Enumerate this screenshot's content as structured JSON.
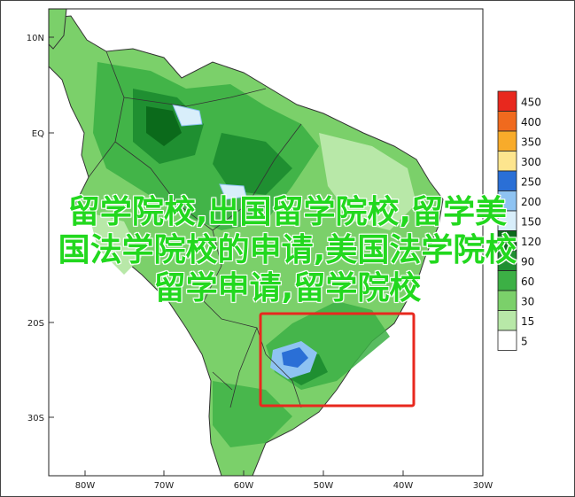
{
  "map": {
    "lat_labels": [
      "10N",
      "EQ",
      "20S",
      "30S"
    ],
    "lon_labels": [
      "80W",
      "70W",
      "60W",
      "50W",
      "40W",
      "30W"
    ]
  },
  "legend": {
    "levels": [
      {
        "label": "450",
        "color": "#e8281e"
      },
      {
        "label": "400",
        "color": "#f06a1e"
      },
      {
        "label": "350",
        "color": "#f8ab2a"
      },
      {
        "label": "300",
        "color": "#fde58e"
      },
      {
        "label": "250",
        "color": "#2a6fd6"
      },
      {
        "label": "200",
        "color": "#8ec3f2"
      },
      {
        "label": "150",
        "color": "#d8eefa"
      },
      {
        "label": "120",
        "color": "#0b6a1b"
      },
      {
        "label": "90",
        "color": "#1f8f31"
      },
      {
        "label": "60",
        "color": "#3cb045"
      },
      {
        "label": "30",
        "color": "#7bd06a"
      },
      {
        "label": "15",
        "color": "#b8e8a8"
      },
      {
        "label": "5",
        "color": "#ffffff"
      }
    ]
  },
  "overlay_text": {
    "line1": "留学院校,出国留学院校,留学美",
    "line2": "国法学院校的申请,美国法学院校",
    "line3": "留学申请,留学院校"
  }
}
